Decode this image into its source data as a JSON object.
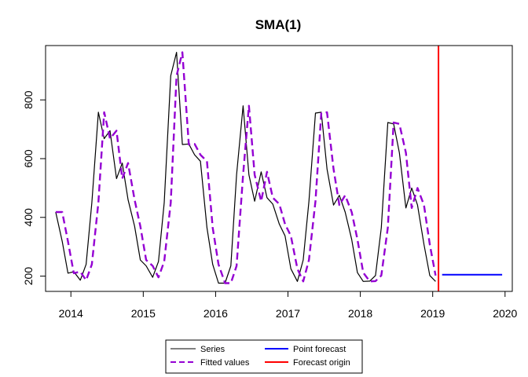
{
  "chart_data": {
    "type": "line",
    "title": "SMA(1)",
    "xlabel": "",
    "ylabel": "",
    "xlim": [
      2013.65,
      2020.1
    ],
    "ylim": [
      148,
      985
    ],
    "x_ticks": [
      2014,
      2015,
      2016,
      2017,
      2018,
      2019,
      2020
    ],
    "y_ticks": [
      200,
      400,
      600,
      800
    ],
    "grid": false,
    "legend_position": "bottom",
    "colors": {
      "series": "#000000",
      "fitted": "#9400d3",
      "forecast": "#0000ff",
      "origin": "#ff0000"
    },
    "series": [
      {
        "name": "Series",
        "x": [
          2013.79,
          2013.88,
          2013.96,
          2014.04,
          2014.13,
          2014.21,
          2014.29,
          2014.38,
          2014.46,
          2014.54,
          2014.63,
          2014.71,
          2014.79,
          2014.88,
          2014.96,
          2015.04,
          2015.13,
          2015.21,
          2015.29,
          2015.38,
          2015.46,
          2015.54,
          2015.63,
          2015.71,
          2015.79,
          2015.88,
          2015.96,
          2016.04,
          2016.13,
          2016.21,
          2016.29,
          2016.38,
          2016.46,
          2016.54,
          2016.63,
          2016.71,
          2016.79,
          2016.88,
          2016.96,
          2017.04,
          2017.13,
          2017.21,
          2017.29,
          2017.38,
          2017.46,
          2017.54,
          2017.63,
          2017.71,
          2017.79,
          2017.88,
          2017.96,
          2018.04,
          2018.13,
          2018.21,
          2018.29,
          2018.38,
          2018.46,
          2018.54,
          2018.63,
          2018.71,
          2018.79,
          2018.88,
          2018.96,
          2019.04
        ],
        "values": [
          418,
          318,
          210,
          215,
          186,
          240,
          450,
          758,
          668,
          695,
          532,
          585,
          460,
          370,
          255,
          235,
          196,
          250,
          450,
          882,
          962,
          648,
          650,
          613,
          591,
          365,
          240,
          176,
          176,
          235,
          545,
          780,
          545,
          455,
          555,
          467,
          445,
          377,
          337,
          225,
          182,
          255,
          455,
          755,
          758,
          565,
          442,
          475,
          418,
          325,
          212,
          182,
          183,
          202,
          365,
          723,
          718,
          620,
          432,
          500,
          442,
          308,
          202,
          182
        ]
      },
      {
        "name": "Fitted values",
        "x": [
          2013.79,
          2013.88,
          2013.96,
          2014.04,
          2014.13,
          2014.21,
          2014.29,
          2014.38,
          2014.46,
          2014.54,
          2014.63,
          2014.71,
          2014.79,
          2014.88,
          2014.96,
          2015.04,
          2015.13,
          2015.21,
          2015.29,
          2015.38,
          2015.46,
          2015.54,
          2015.63,
          2015.71,
          2015.79,
          2015.88,
          2015.96,
          2016.04,
          2016.13,
          2016.21,
          2016.29,
          2016.38,
          2016.46,
          2016.54,
          2016.63,
          2016.71,
          2016.79,
          2016.88,
          2016.96,
          2017.04,
          2017.13,
          2017.21,
          2017.29,
          2017.38,
          2017.46,
          2017.54,
          2017.63,
          2017.71,
          2017.79,
          2017.88,
          2017.96,
          2018.04,
          2018.13,
          2018.21,
          2018.29,
          2018.38,
          2018.46,
          2018.54,
          2018.63,
          2018.71,
          2018.79,
          2018.88,
          2018.96,
          2019.04
        ],
        "values": [
          418,
          418,
          318,
          210,
          215,
          186,
          240,
          450,
          758,
          668,
          695,
          532,
          585,
          460,
          370,
          255,
          235,
          196,
          250,
          450,
          882,
          962,
          648,
          650,
          613,
          591,
          365,
          240,
          176,
          176,
          235,
          545,
          780,
          545,
          455,
          555,
          467,
          445,
          377,
          337,
          225,
          182,
          255,
          455,
          755,
          758,
          565,
          442,
          475,
          418,
          325,
          212,
          182,
          183,
          202,
          365,
          723,
          718,
          620,
          432,
          500,
          442,
          308,
          202
        ]
      },
      {
        "name": "Point forecast",
        "x": [
          2019.13,
          2019.21,
          2019.29,
          2019.38,
          2019.46,
          2019.54,
          2019.63,
          2019.71,
          2019.79,
          2019.88,
          2019.96
        ],
        "values": [
          205,
          205,
          205,
          205,
          205,
          205,
          205,
          205,
          205,
          205,
          205
        ]
      }
    ],
    "forecast_origin": {
      "name": "Forecast origin",
      "x": 2019.08
    },
    "legend": [
      {
        "label": "Series",
        "style": "solid-thin",
        "color": "#000000"
      },
      {
        "label": "Fitted values",
        "style": "dashed",
        "color": "#9400d3"
      },
      {
        "label": "Point forecast",
        "style": "solid",
        "color": "#0000ff"
      },
      {
        "label": "Forecast origin",
        "style": "solid",
        "color": "#ff0000"
      }
    ]
  }
}
